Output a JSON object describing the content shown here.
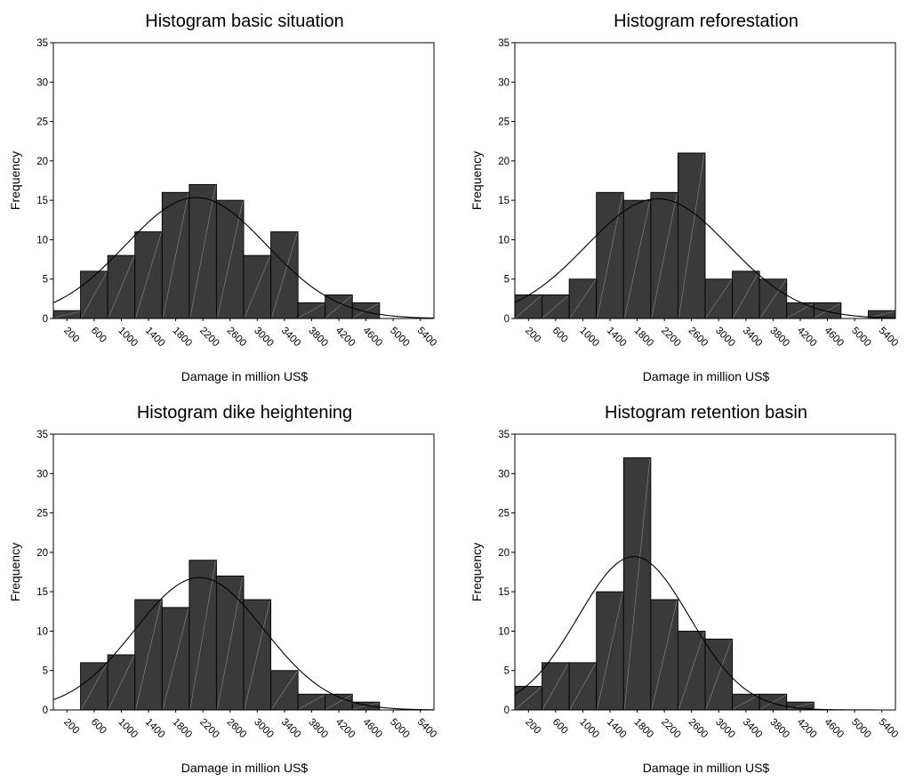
{
  "chart_data": [
    {
      "type": "bar",
      "title": "Histogram basic situation",
      "xlabel": "Damage in million US$",
      "ylabel": "Frequency",
      "ylim": [
        0,
        35
      ],
      "yticks": [
        "0",
        "5",
        "10",
        "15",
        "20",
        "25",
        "30",
        "35"
      ],
      "x_tick_labels": [
        "200",
        "600",
        "1000",
        "1400",
        "1800",
        "2200",
        "2600",
        "3000",
        "3400",
        "3800",
        "4200",
        "4600",
        "5000",
        "5400"
      ],
      "bin_width": 400,
      "bins_start": [
        0,
        400,
        800,
        1200,
        1600,
        2000,
        2400,
        2800,
        3200,
        3600,
        4000,
        4400,
        4800,
        5200
      ],
      "values": [
        1,
        6,
        8,
        11,
        16,
        17,
        15,
        8,
        11,
        2,
        3,
        2,
        0,
        0
      ],
      "normal_curve": {
        "mean": 2100,
        "sd": 1040,
        "n": 100
      },
      "grid": false
    },
    {
      "type": "bar",
      "title": "Histogram reforestation",
      "xlabel": "Damage in million US$",
      "ylabel": "Frequency",
      "ylim": [
        0,
        35
      ],
      "yticks": [
        "0",
        "5",
        "10",
        "15",
        "20",
        "25",
        "30",
        "35"
      ],
      "x_tick_labels": [
        "200",
        "600",
        "1000",
        "1400",
        "1800",
        "2200",
        "2600",
        "3000",
        "3400",
        "3800",
        "4200",
        "4600",
        "5000",
        "5400"
      ],
      "bin_width": 400,
      "bins_start": [
        0,
        400,
        800,
        1200,
        1600,
        2000,
        2400,
        2800,
        3200,
        3600,
        4000,
        4400,
        4800,
        5200
      ],
      "values": [
        3,
        3,
        5,
        16,
        15,
        16,
        21,
        5,
        6,
        5,
        2,
        2,
        0,
        1
      ],
      "normal_curve": {
        "mean": 2100,
        "sd": 1050,
        "n": 100
      },
      "grid": false
    },
    {
      "type": "bar",
      "title": "Histogram dike heightening",
      "xlabel": "Damage in million US$",
      "ylabel": "Frequency",
      "ylim": [
        0,
        35
      ],
      "yticks": [
        "0",
        "5",
        "10",
        "15",
        "20",
        "25",
        "30",
        "35"
      ],
      "x_tick_labels": [
        "200",
        "600",
        "1000",
        "1400",
        "1800",
        "2200",
        "2600",
        "3000",
        "3400",
        "3800",
        "4200",
        "4600",
        "5000",
        "5400"
      ],
      "bin_width": 400,
      "bins_start": [
        0,
        400,
        800,
        1200,
        1600,
        2000,
        2400,
        2800,
        3200,
        3600,
        4000,
        4400,
        4800,
        5200
      ],
      "values": [
        0,
        6,
        7,
        14,
        13,
        19,
        17,
        14,
        5,
        2,
        2,
        1,
        0,
        0
      ],
      "normal_curve": {
        "mean": 2150,
        "sd": 950,
        "n": 100
      },
      "grid": false
    },
    {
      "type": "bar",
      "title": "Histogram retention basin",
      "xlabel": "Damage in million US$",
      "ylabel": "Frequency",
      "ylim": [
        0,
        35
      ],
      "yticks": [
        "0",
        "5",
        "10",
        "15",
        "20",
        "25",
        "30",
        "35"
      ],
      "x_tick_labels": [
        "200",
        "600",
        "1000",
        "1400",
        "1800",
        "2200",
        "2600",
        "3000",
        "3400",
        "3800",
        "4200",
        "4600",
        "5000",
        "5400"
      ],
      "bin_width": 400,
      "bins_start": [
        0,
        400,
        800,
        1200,
        1600,
        2000,
        2400,
        2800,
        3200,
        3600,
        4000,
        4400,
        4800,
        5200
      ],
      "values": [
        3,
        6,
        6,
        15,
        32,
        14,
        10,
        9,
        2,
        2,
        1,
        0,
        0,
        0
      ],
      "normal_curve": {
        "mean": 1750,
        "sd": 820,
        "n": 100
      },
      "grid": false
    }
  ]
}
